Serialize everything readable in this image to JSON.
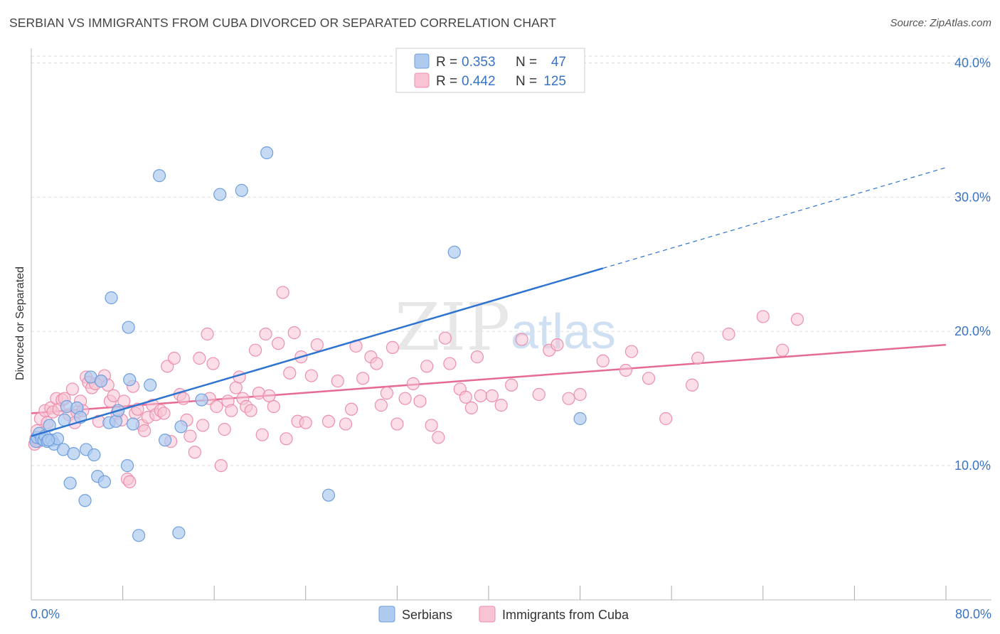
{
  "title": "SERBIAN VS IMMIGRANTS FROM CUBA DIVORCED OR SEPARATED CORRELATION CHART",
  "source": "Source: ZipAtlas.com",
  "watermark": {
    "zip": "ZIP",
    "atlas": "atlas"
  },
  "colors": {
    "serbians_fill": "#aecbef",
    "serbians_stroke": "#6f9fdc",
    "serbians_line": "#2d74d0",
    "cuba_fill": "#f8c3d3",
    "cuba_stroke": "#ec8fad",
    "cuba_line": "#e56a94",
    "tick_text": "#3a73c4",
    "grid": "#dddddd"
  },
  "legend": {
    "rows": [
      {
        "r_label": "R =",
        "r_value": "0.353",
        "n_label": "N =",
        "n_value": "47"
      },
      {
        "r_label": "R =",
        "r_value": "0.442",
        "n_label": "N =",
        "n_value": "125"
      }
    ]
  },
  "chart_data": {
    "type": "scatter",
    "title": "SERBIAN VS IMMIGRANTS FROM CUBA DIVORCED OR SEPARATED CORRELATION CHART",
    "xlabel": "",
    "ylabel": "Divorced or Separated",
    "xlim": [
      0,
      80
    ],
    "ylim": [
      0,
      40.5
    ],
    "x_tick_labels": [
      "0.0%",
      "80.0%"
    ],
    "y_ticks": [
      10,
      20,
      30,
      40
    ],
    "y_tick_labels": [
      "10.0%",
      "20.0%",
      "30.0%",
      "40.0%"
    ],
    "grid": true,
    "legend_position": "top-center",
    "series": [
      {
        "name": "Serbians",
        "points": [
          [
            0.4,
            11.8
          ],
          [
            0.5,
            12.1
          ],
          [
            0.7,
            12.4
          ],
          [
            0.9,
            12.0
          ],
          [
            1.1,
            11.9
          ],
          [
            1.2,
            12.2
          ],
          [
            1.4,
            11.8
          ],
          [
            1.6,
            13.0
          ],
          [
            1.8,
            11.9
          ],
          [
            2.0,
            11.6
          ],
          [
            2.3,
            12.0
          ],
          [
            2.8,
            11.2
          ],
          [
            3.1,
            14.4
          ],
          [
            3.4,
            8.7
          ],
          [
            3.7,
            10.9
          ],
          [
            4.0,
            14.3
          ],
          [
            4.3,
            13.6
          ],
          [
            4.7,
            7.4
          ],
          [
            4.8,
            11.2
          ],
          [
            5.2,
            16.6
          ],
          [
            5.5,
            10.8
          ],
          [
            5.8,
            9.2
          ],
          [
            6.1,
            16.3
          ],
          [
            6.4,
            8.8
          ],
          [
            6.8,
            13.2
          ],
          [
            7.0,
            22.5
          ],
          [
            7.4,
            13.3
          ],
          [
            7.6,
            14.1
          ],
          [
            8.4,
            10.0
          ],
          [
            8.5,
            20.3
          ],
          [
            8.6,
            16.4
          ],
          [
            8.9,
            13.1
          ],
          [
            9.4,
            4.8
          ],
          [
            10.4,
            16.0
          ],
          [
            11.2,
            31.6
          ],
          [
            11.7,
            11.9
          ],
          [
            12.9,
            5.0
          ],
          [
            13.1,
            12.9
          ],
          [
            14.9,
            14.9
          ],
          [
            16.5,
            30.2
          ],
          [
            18.4,
            30.5
          ],
          [
            20.6,
            33.3
          ],
          [
            26.0,
            7.8
          ],
          [
            37.0,
            25.9
          ],
          [
            48.0,
            13.5
          ],
          [
            2.9,
            13.4
          ],
          [
            1.5,
            11.9
          ]
        ]
      },
      {
        "name": "Immigrants from Cuba",
        "points": [
          [
            0.3,
            11.6
          ],
          [
            0.4,
            12.0
          ],
          [
            0.5,
            12.6
          ],
          [
            0.6,
            11.8
          ],
          [
            0.8,
            13.5
          ],
          [
            1.0,
            12.1
          ],
          [
            1.2,
            14.1
          ],
          [
            1.4,
            13.2
          ],
          [
            1.7,
            14.3
          ],
          [
            1.9,
            14.0
          ],
          [
            2.2,
            15.0
          ],
          [
            2.4,
            14.2
          ],
          [
            2.7,
            14.9
          ],
          [
            2.9,
            15.0
          ],
          [
            3.3,
            13.8
          ],
          [
            3.6,
            15.7
          ],
          [
            3.8,
            13.2
          ],
          [
            4.0,
            14.0
          ],
          [
            4.3,
            14.8
          ],
          [
            4.5,
            14.1
          ],
          [
            4.8,
            16.6
          ],
          [
            5.0,
            16.2
          ],
          [
            5.3,
            15.8
          ],
          [
            5.6,
            16.1
          ],
          [
            5.9,
            13.3
          ],
          [
            6.1,
            16.3
          ],
          [
            6.4,
            16.7
          ],
          [
            6.7,
            16.0
          ],
          [
            6.9,
            14.8
          ],
          [
            7.2,
            15.2
          ],
          [
            7.5,
            13.9
          ],
          [
            7.9,
            13.4
          ],
          [
            8.1,
            14.8
          ],
          [
            8.4,
            9.0
          ],
          [
            8.6,
            8.8
          ],
          [
            8.9,
            15.9
          ],
          [
            9.1,
            13.9
          ],
          [
            9.3,
            14.2
          ],
          [
            9.7,
            13.0
          ],
          [
            9.9,
            12.6
          ],
          [
            10.2,
            13.6
          ],
          [
            10.6,
            14.5
          ],
          [
            10.9,
            13.8
          ],
          [
            11.3,
            14.1
          ],
          [
            11.6,
            13.9
          ],
          [
            11.9,
            17.4
          ],
          [
            12.2,
            11.8
          ],
          [
            12.5,
            18.0
          ],
          [
            13.0,
            15.3
          ],
          [
            13.3,
            15.0
          ],
          [
            13.6,
            13.4
          ],
          [
            13.9,
            12.2
          ],
          [
            14.3,
            11.0
          ],
          [
            14.7,
            18.0
          ],
          [
            15.0,
            13.0
          ],
          [
            15.4,
            19.8
          ],
          [
            15.6,
            15.0
          ],
          [
            15.9,
            17.6
          ],
          [
            16.2,
            14.4
          ],
          [
            16.6,
            10.0
          ],
          [
            16.9,
            12.7
          ],
          [
            17.2,
            14.8
          ],
          [
            17.5,
            14.1
          ],
          [
            17.9,
            15.8
          ],
          [
            18.2,
            16.6
          ],
          [
            18.5,
            15.0
          ],
          [
            18.8,
            14.4
          ],
          [
            19.2,
            14.1
          ],
          [
            19.6,
            18.6
          ],
          [
            19.9,
            15.4
          ],
          [
            20.2,
            12.3
          ],
          [
            20.5,
            19.8
          ],
          [
            20.8,
            15.2
          ],
          [
            21.2,
            14.4
          ],
          [
            21.6,
            19.1
          ],
          [
            22.0,
            22.9
          ],
          [
            22.3,
            12.0
          ],
          [
            22.6,
            16.9
          ],
          [
            23.0,
            19.9
          ],
          [
            23.3,
            13.3
          ],
          [
            23.6,
            18.1
          ],
          [
            24.0,
            13.2
          ],
          [
            24.5,
            16.7
          ],
          [
            25.0,
            19.0
          ],
          [
            26.0,
            13.3
          ],
          [
            26.8,
            16.3
          ],
          [
            27.5,
            13.1
          ],
          [
            28.0,
            14.2
          ],
          [
            28.4,
            18.9
          ],
          [
            29.0,
            16.5
          ],
          [
            29.7,
            18.1
          ],
          [
            30.2,
            17.6
          ],
          [
            30.6,
            14.5
          ],
          [
            31.1,
            15.4
          ],
          [
            31.6,
            18.8
          ],
          [
            32.0,
            13.1
          ],
          [
            32.7,
            15.0
          ],
          [
            33.4,
            16.1
          ],
          [
            34.0,
            14.8
          ],
          [
            34.6,
            17.4
          ],
          [
            35.0,
            13.0
          ],
          [
            35.6,
            12.1
          ],
          [
            36.2,
            19.5
          ],
          [
            36.6,
            17.6
          ],
          [
            37.5,
            15.7
          ],
          [
            38.0,
            15.1
          ],
          [
            38.5,
            14.3
          ],
          [
            39.0,
            18.1
          ],
          [
            39.3,
            15.2
          ],
          [
            40.3,
            15.2
          ],
          [
            41.1,
            14.5
          ],
          [
            42.0,
            16.0
          ],
          [
            42.9,
            19.4
          ],
          [
            44.4,
            15.3
          ],
          [
            45.3,
            18.6
          ],
          [
            46.0,
            19.0
          ],
          [
            47.0,
            15.0
          ],
          [
            48.0,
            15.3
          ],
          [
            50.0,
            17.8
          ],
          [
            52.0,
            17.1
          ],
          [
            52.5,
            18.5
          ],
          [
            54.0,
            16.5
          ],
          [
            55.5,
            13.5
          ],
          [
            57.8,
            16.0
          ],
          [
            58.3,
            18.0
          ],
          [
            61.0,
            19.8
          ],
          [
            64.0,
            21.1
          ],
          [
            65.7,
            18.6
          ],
          [
            67.0,
            20.9
          ]
        ]
      }
    ],
    "trendlines": [
      {
        "series": "Serbians",
        "solid": [
          [
            0,
            12.2
          ],
          [
            50,
            24.7
          ]
        ],
        "dashed": [
          [
            50,
            24.7
          ],
          [
            80,
            32.2
          ]
        ]
      },
      {
        "series": "Immigrants from Cuba",
        "solid": [
          [
            0,
            13.9
          ],
          [
            80,
            19.0
          ]
        ]
      }
    ]
  },
  "bottom_legend": [
    {
      "label": "Serbians"
    },
    {
      "label": "Immigrants from Cuba"
    }
  ]
}
